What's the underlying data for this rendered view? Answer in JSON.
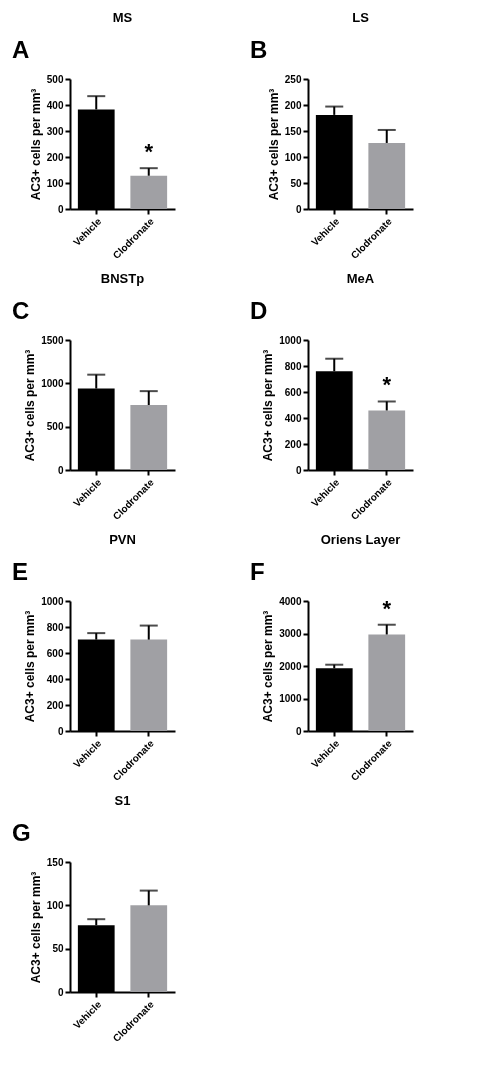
{
  "chart_data": [
    {
      "type": "bar",
      "title": "MS",
      "ylabel": "AC3+ cells per mm³",
      "categories": [
        "Vehicle",
        "Clodronate"
      ],
      "values": [
        383,
        128
      ],
      "colors": [
        "#000000",
        "#a0a0a4"
      ],
      "errors": [
        [
          383,
          434
        ],
        [
          128,
          157
        ]
      ],
      "ylim": [
        0,
        500
      ],
      "yticks": [
        0,
        100,
        200,
        300,
        400,
        500
      ],
      "grid": false,
      "annotations": [
        "A",
        {
          "text": "*",
          "x": "Clodronate",
          "y": 157
        }
      ]
    },
    {
      "type": "bar",
      "title": "LS",
      "ylabel": "AC3+ cells per mm³",
      "categories": [
        "Vehicle",
        "Clodronate"
      ],
      "values": [
        181,
        127
      ],
      "colors": [
        "#000000",
        "#a0a0a4"
      ],
      "errors": [
        [
          181,
          197
        ],
        [
          127,
          152
        ]
      ],
      "ylim": [
        0,
        250
      ],
      "yticks": [
        0,
        50,
        100,
        150,
        200,
        250
      ],
      "grid": false,
      "annotations": [
        "B"
      ]
    },
    {
      "type": "bar",
      "title": "BNSTp",
      "ylabel": "AC3+ cells per mm³",
      "categories": [
        "Vehicle",
        "Clodronate"
      ],
      "values": [
        940,
        750
      ],
      "colors": [
        "#000000",
        "#a0a0a4"
      ],
      "errors": [
        [
          940,
          1100
        ],
        [
          750,
          910
        ]
      ],
      "ylim": [
        0,
        1500
      ],
      "yticks": [
        0,
        500,
        1000,
        1500
      ],
      "grid": false,
      "annotations": [
        "C"
      ]
    },
    {
      "type": "bar",
      "title": "MeA",
      "ylabel": "AC3+ cells per mm³",
      "categories": [
        "Vehicle",
        "Clodronate"
      ],
      "values": [
        760,
        458
      ],
      "colors": [
        "#000000",
        "#a0a0a4"
      ],
      "errors": [
        [
          760,
          856
        ],
        [
          458,
          527
        ]
      ],
      "ylim": [
        0,
        1000
      ],
      "yticks": [
        0,
        200,
        400,
        600,
        800,
        1000
      ],
      "grid": false,
      "annotations": [
        "D",
        {
          "text": "*",
          "x": "Clodronate",
          "y": 527
        }
      ]
    },
    {
      "type": "bar",
      "title": "PVN",
      "ylabel": "AC3+ cells per mm³",
      "categories": [
        "Vehicle",
        "Clodronate"
      ],
      "values": [
        703,
        703
      ],
      "colors": [
        "#000000",
        "#a0a0a4"
      ],
      "errors": [
        [
          703,
          753
        ],
        [
          703,
          811
        ]
      ],
      "ylim": [
        0,
        1000
      ],
      "yticks": [
        0,
        200,
        400,
        600,
        800,
        1000
      ],
      "grid": false,
      "annotations": [
        "E"
      ]
    },
    {
      "type": "bar",
      "title": "Oriens Layer",
      "ylabel": "AC3+ cells per mm³",
      "categories": [
        "Vehicle",
        "Clodronate"
      ],
      "values": [
        1930,
        2970
      ],
      "colors": [
        "#000000",
        "#a0a0a4"
      ],
      "errors": [
        [
          1930,
          2040
        ],
        [
          2970,
          3270
        ]
      ],
      "ylim": [
        0,
        4000
      ],
      "yticks": [
        0,
        1000,
        2000,
        3000,
        4000
      ],
      "grid": false,
      "annotations": [
        "F",
        {
          "text": "*",
          "x": "Clodronate",
          "y": 3270
        }
      ]
    },
    {
      "type": "bar",
      "title": "S1",
      "ylabel": "AC3+ cells per mm³",
      "categories": [
        "Vehicle",
        "Clodronate"
      ],
      "values": [
        77,
        100
      ],
      "colors": [
        "#000000",
        "#a0a0a4"
      ],
      "errors": [
        [
          77,
          84
        ],
        [
          100,
          117
        ]
      ],
      "ylim": [
        0,
        150
      ],
      "yticks": [
        0,
        50,
        100,
        150
      ],
      "grid": false,
      "annotations": [
        "G"
      ]
    }
  ]
}
